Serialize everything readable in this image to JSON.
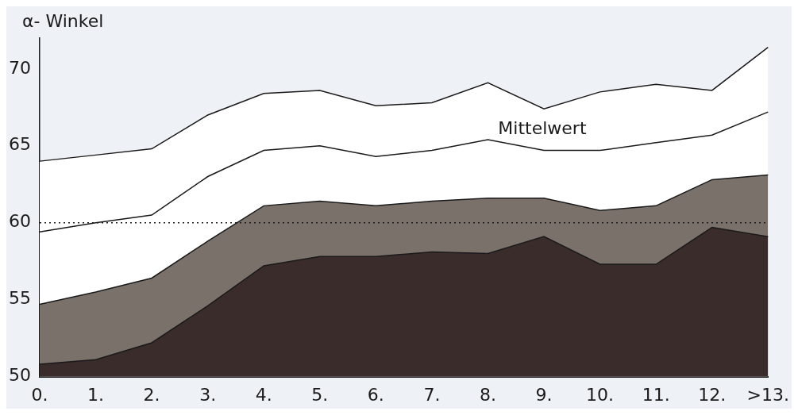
{
  "chart_data": {
    "type": "area",
    "ylabel": "α- Winkel",
    "categories": [
      "0.",
      "1.",
      "2.",
      "3.",
      "4.",
      "5.",
      "6.",
      "7.",
      "8.",
      "9.",
      "10.",
      "11.",
      "12.",
      ">13."
    ],
    "series": [
      {
        "color": "#ffffff",
        "values": [
          64,
          64.4,
          64.8,
          67,
          68.4,
          68.6,
          67.6,
          67.8,
          69.1,
          67.4,
          68.5,
          69,
          68.6,
          71.4
        ]
      },
      {
        "color": "#7b716b",
        "values": [
          54.7,
          55.5,
          56.4,
          58.8,
          61.1,
          61.4,
          61.1,
          61.4,
          61.6,
          61.6,
          60.8,
          61.1,
          62.8,
          63.1
        ]
      },
      {
        "color": "#3a2c2a",
        "values": [
          50.8,
          51.1,
          52.2,
          54.6,
          57.2,
          57.8,
          57.8,
          58.1,
          58,
          59.1,
          57.3,
          57.3,
          59.7,
          59.1
        ]
      },
      {
        "type": "line",
        "color": "#1a1a1a",
        "values": [
          59.4,
          60,
          60.5,
          63,
          64.7,
          65,
          64.3,
          64.7,
          65.4,
          64.7,
          64.7,
          65.2,
          65.7,
          67.2
        ]
      }
    ],
    "ylim": [
      50,
      72
    ],
    "yticks": [
      50,
      55,
      60,
      65,
      70
    ],
    "grid": false,
    "legend": false,
    "ref_lines": [
      {
        "axis": "y",
        "value": 60,
        "line_style": "dotted",
        "color": "#1a1a1a"
      }
    ],
    "annotations": [
      "Mittelwert"
    ]
  }
}
